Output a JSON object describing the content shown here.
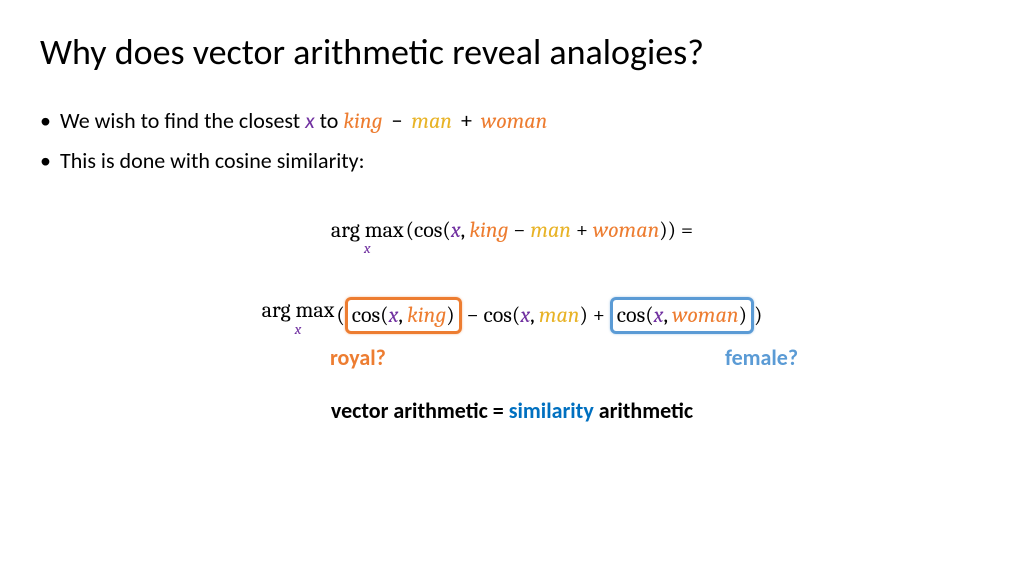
{
  "title": "Why does vector arithmetic reveal analogies?",
  "bullets": {
    "b1_pre": "We wish to find the closest ",
    "b1_x": "x",
    "b1_to": " to ",
    "b1_king": "king",
    "b1_minus": " − ",
    "b1_man": "man",
    "b1_plus": " + ",
    "b1_woman": "woman",
    "b2": "This is done with cosine similarity:"
  },
  "eq1": {
    "argmax": "arg max",
    "sub": "x",
    "lparen_cos": "(cos(",
    "x": "x",
    "comma": ", ",
    "king": "king",
    "minus": " − ",
    "man": "man",
    "plus": " + ",
    "woman": "woman",
    "rparen": ")) ="
  },
  "eq2": {
    "argmax": "arg max",
    "sub": "x",
    "lparen": "(",
    "cos1_pre": "cos(",
    "x1": "x",
    "comma1": ", ",
    "king": "king",
    "cos1_post": ")",
    "minus": " − cos(",
    "x2": "x",
    "comma2": ", ",
    "man": "man",
    "mid_close": ") + ",
    "cos3_pre": "cos(",
    "x3": "x",
    "comma3": ", ",
    "woman": "woman",
    "cos3_post": ")",
    "rparen": ")"
  },
  "annotations": {
    "royal": "royal?",
    "female": "female?"
  },
  "conclusion": {
    "pre": "vector arithmetic = ",
    "similarity": "similarity",
    "post": " arithmetic"
  },
  "colors": {
    "x": "#7030a0",
    "king": "#ed7d31",
    "man": "#e8b326",
    "woman": "#ed7d31",
    "royal_box": "#ed7d31",
    "female_box": "#5b9bd5",
    "similarity": "#0070c0"
  }
}
